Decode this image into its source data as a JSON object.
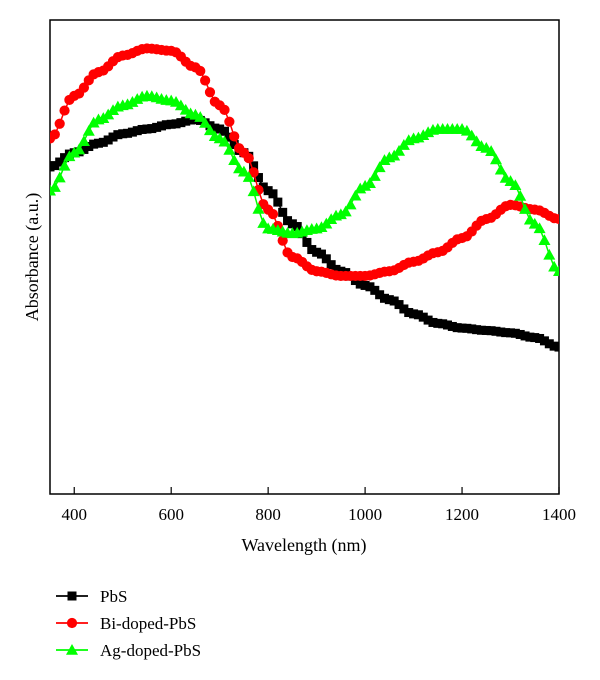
{
  "chart_data": {
    "type": "line",
    "xlabel": "Wavelength (nm)",
    "ylabel": "Absorbance (a.u.)",
    "xlim": [
      350,
      1400
    ],
    "ylim": [
      0,
      1
    ],
    "xticks": [
      400,
      600,
      800,
      1000,
      1200,
      1400
    ],
    "yticks": [],
    "grid": false,
    "legend_position": "bottom-left",
    "series": [
      {
        "name": "PbS",
        "color": "#000000",
        "marker": "square",
        "x": [
          350,
          400,
          450,
          500,
          550,
          600,
          650,
          700,
          750,
          800,
          850,
          900,
          950,
          1000,
          1050,
          1100,
          1150,
          1200,
          1250,
          1300,
          1350,
          1400
        ],
        "y": [
          0.69,
          0.72,
          0.74,
          0.76,
          0.77,
          0.78,
          0.79,
          0.77,
          0.72,
          0.64,
          0.57,
          0.51,
          0.47,
          0.44,
          0.41,
          0.38,
          0.36,
          0.35,
          0.345,
          0.34,
          0.33,
          0.31
        ]
      },
      {
        "name": "Bi-doped-PbS",
        "color": "#ff0000",
        "marker": "circle",
        "x": [
          350,
          400,
          450,
          500,
          550,
          600,
          650,
          700,
          750,
          800,
          850,
          900,
          950,
          1000,
          1050,
          1100,
          1150,
          1200,
          1250,
          1300,
          1350,
          1400
        ],
        "y": [
          0.75,
          0.84,
          0.89,
          0.925,
          0.94,
          0.935,
          0.9,
          0.82,
          0.72,
          0.6,
          0.5,
          0.47,
          0.46,
          0.46,
          0.47,
          0.49,
          0.51,
          0.54,
          0.58,
          0.61,
          0.6,
          0.58
        ]
      },
      {
        "name": "Ag-doped-PbS",
        "color": "#00ff00",
        "marker": "triangle",
        "x": [
          350,
          400,
          450,
          500,
          550,
          600,
          650,
          700,
          750,
          800,
          850,
          900,
          950,
          1000,
          1050,
          1100,
          1150,
          1200,
          1250,
          1300,
          1350,
          1400
        ],
        "y": [
          0.64,
          0.72,
          0.79,
          0.82,
          0.84,
          0.83,
          0.8,
          0.75,
          0.68,
          0.56,
          0.55,
          0.56,
          0.59,
          0.65,
          0.71,
          0.75,
          0.77,
          0.77,
          0.73,
          0.66,
          0.57,
          0.47
        ]
      }
    ]
  }
}
